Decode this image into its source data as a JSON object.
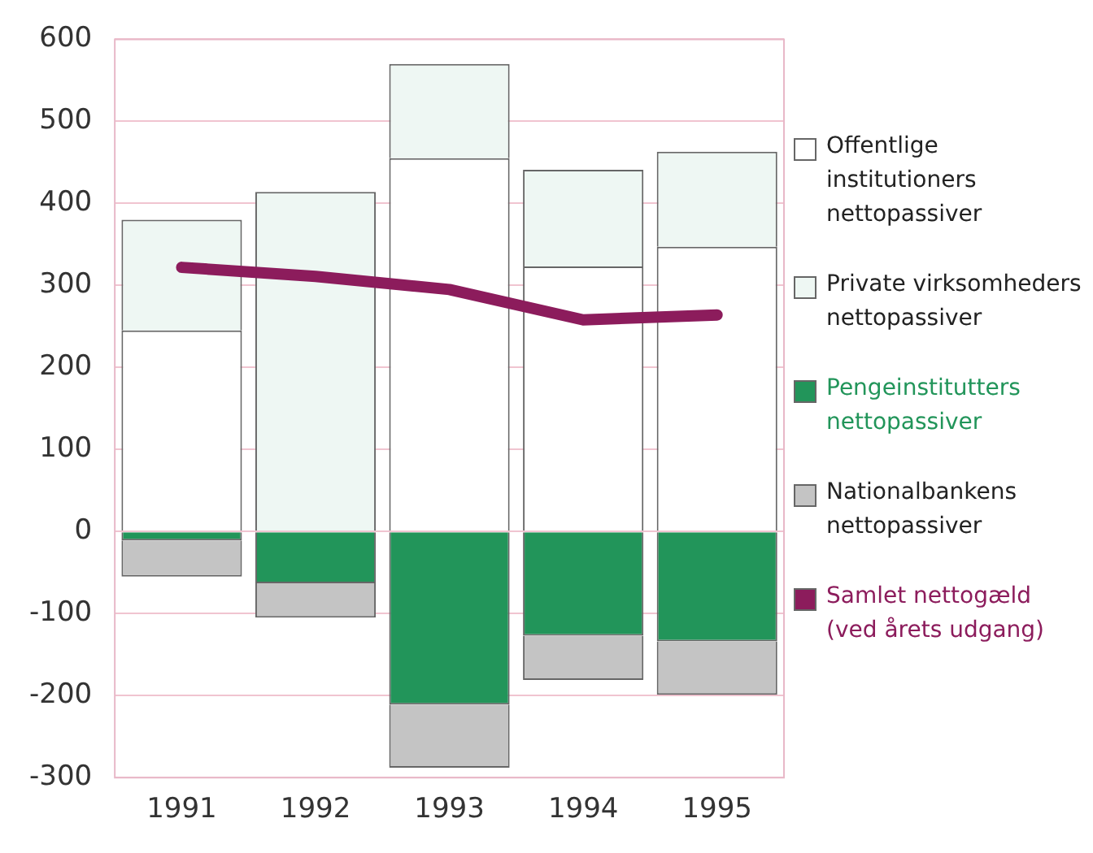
{
  "chart_data": {
    "type": "bar",
    "stacked": true,
    "categories": [
      "1991",
      "1992",
      "1993",
      "1994",
      "1995"
    ],
    "ylim": [
      -300,
      600
    ],
    "yticks": [
      -300,
      -200,
      -100,
      0,
      100,
      200,
      300,
      400,
      500,
      600
    ],
    "grid": "y",
    "legend": "right",
    "series": [
      {
        "name": "Offentlige institutioners\nnettopassiver",
        "color": "#ffffff",
        "values": [
          245,
          0,
          455,
          323,
          347
        ]
      },
      {
        "name": "Private virksomheders\nnettopassiver",
        "color": "#eef7f3",
        "values": [
          135,
          414,
          115,
          118,
          116
        ]
      },
      {
        "name": "Pengeinstitutters\nnettopassiver",
        "color": "#22955a",
        "values": [
          -11,
          -63,
          -211,
          -127,
          -134
        ]
      },
      {
        "name": "Nationalbankens\nnettopassiver",
        "color": "#c4c4c4",
        "values": [
          -44,
          -42,
          -77,
          -54,
          -65
        ]
      },
      {
        "name": "Samlet nettogæld\n(ved årets udgang)",
        "type": "line",
        "color": "#8c1c5c",
        "values": [
          322,
          311,
          295,
          258,
          264
        ]
      }
    ]
  }
}
